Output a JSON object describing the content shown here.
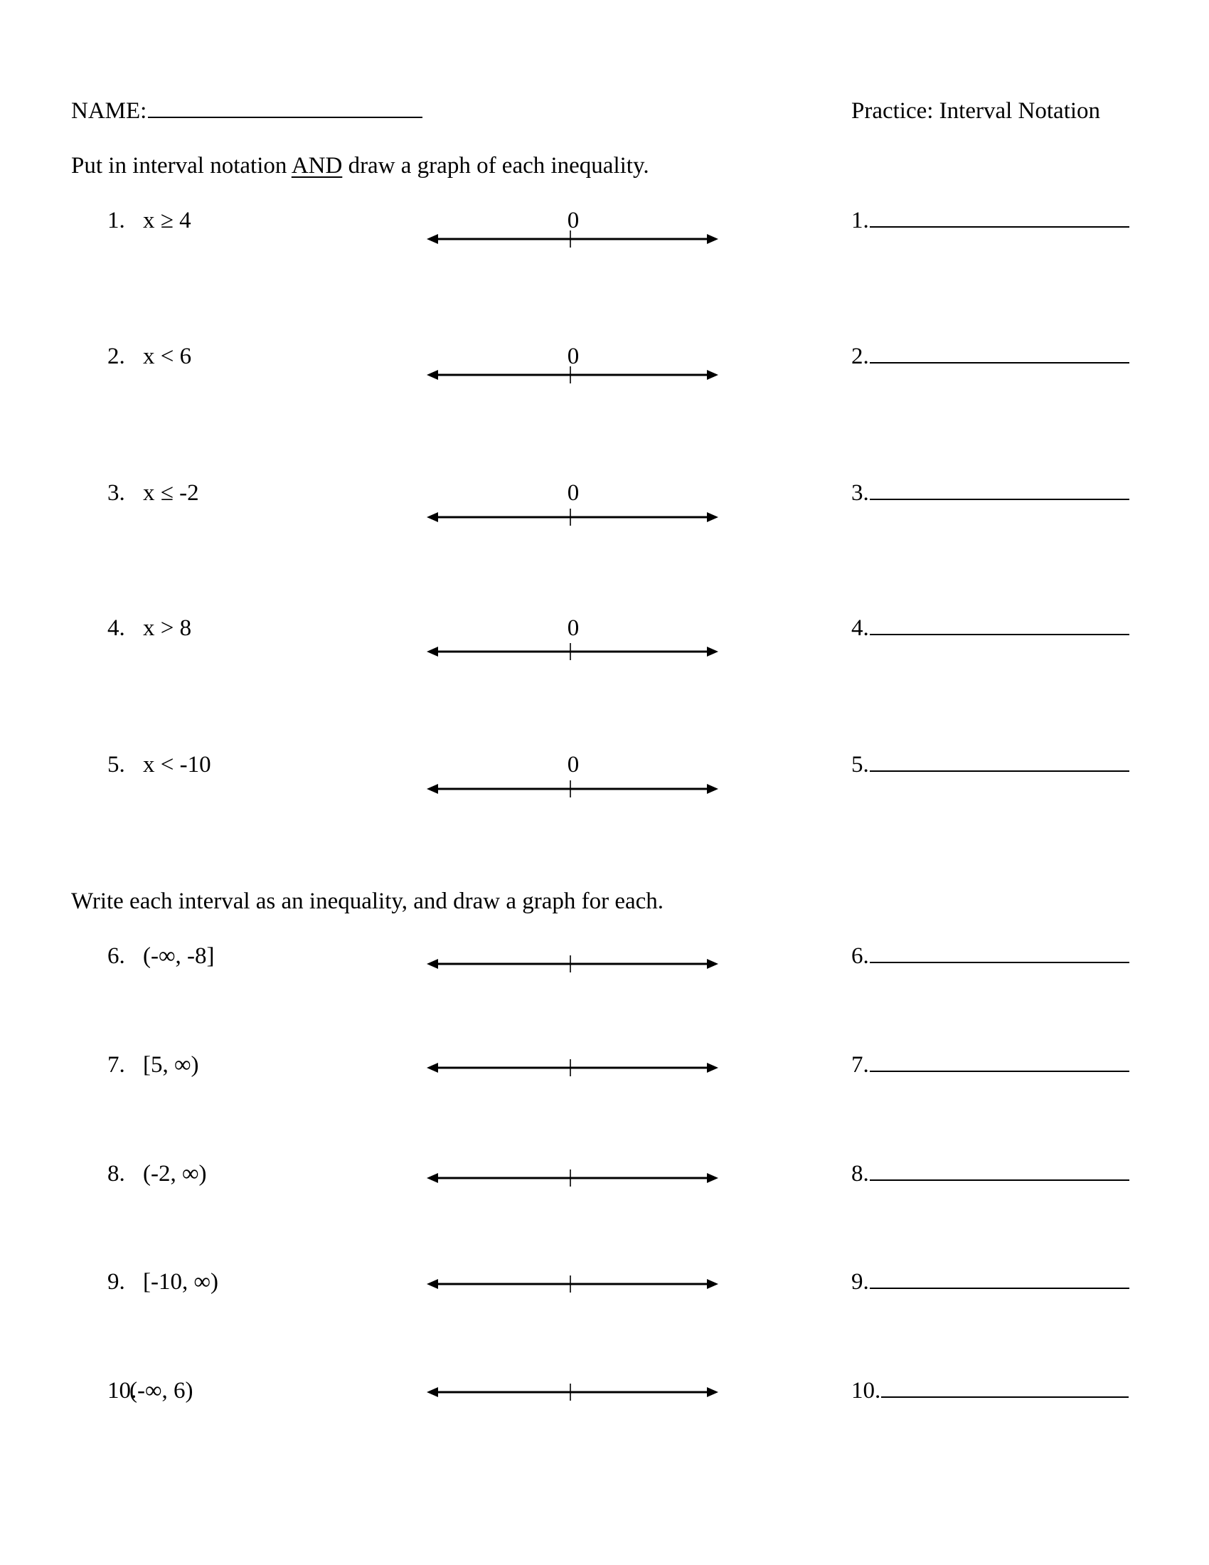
{
  "header": {
    "name_label": "NAME:",
    "title": "Practice: Interval Notation"
  },
  "section1": {
    "instruction_pre": "Put in interval notation ",
    "instruction_emph": "AND",
    "instruction_post": " draw a graph of each inequality.",
    "origin_label": "0",
    "problems": [
      {
        "number": "1.",
        "expression": "x ≥ 4",
        "answer_label": "1."
      },
      {
        "number": "2.",
        "expression": "x < 6",
        "answer_label": "2."
      },
      {
        "number": "3.",
        "expression": "x ≤ -2",
        "answer_label": "3."
      },
      {
        "number": "4.",
        "expression": "x > 8",
        "answer_label": "4."
      },
      {
        "number": "5.",
        "expression": "x < -10",
        "answer_label": "5."
      }
    ]
  },
  "section2": {
    "instruction": "Write each interval as an inequality, and draw a graph for each.",
    "problems": [
      {
        "number": "6.",
        "expression": "(-∞, -8]",
        "answer_label": "6."
      },
      {
        "number": "7.",
        "expression": "[5, ∞)",
        "answer_label": "7."
      },
      {
        "number": "8.",
        "expression": "(-2, ∞)",
        "answer_label": "8."
      },
      {
        "number": "9.",
        "expression": "[-10, ∞)",
        "answer_label": "9."
      },
      {
        "number": "10.",
        "expression": "(-∞, 6)",
        "answer_label": "10."
      }
    ]
  }
}
